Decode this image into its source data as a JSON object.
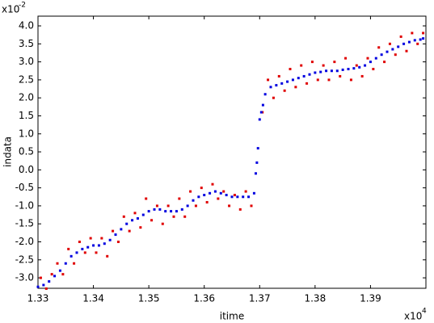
{
  "chart_data": {
    "type": "scatter",
    "x_label": "itime",
    "y_label": "indata",
    "x_multiplier": {
      "base": "x10",
      "exponent": "4"
    },
    "y_multiplier": {
      "base": "x10",
      "exponent": "-2"
    },
    "xlim": [
      1.33,
      1.4
    ],
    "ylim": [
      -3.29,
      4.27
    ],
    "xticks": [
      1.33,
      1.34,
      1.35,
      1.36,
      1.37,
      1.38,
      1.39
    ],
    "yticks": [
      {
        "value": -3,
        "label": "-3.0"
      },
      -2.5,
      {
        "value": -2,
        "label": "-2.0"
      },
      -1.5,
      {
        "value": -1,
        "label": "-1.0"
      },
      -0.5,
      {
        "value": 0,
        "label": "0.0"
      },
      0.5,
      {
        "value": 1,
        "label": "1.0"
      },
      1.5,
      {
        "value": 2,
        "label": "2.0"
      },
      2.5,
      {
        "value": 3,
        "label": "3.0"
      },
      3.5,
      {
        "value": 4,
        "label": "4.0"
      }
    ],
    "series": [
      {
        "color": "#e00000",
        "x": [
          1.3305,
          1.3315,
          1.3325,
          1.3335,
          1.3345,
          1.3355,
          1.3365,
          1.3375,
          1.3385,
          1.3395,
          1.3405,
          1.3415,
          1.3425,
          1.3435,
          1.3445,
          1.3455,
          1.3465,
          1.3475,
          1.3485,
          1.3495,
          1.3505,
          1.3515,
          1.3525,
          1.3535,
          1.3545,
          1.3555,
          1.3565,
          1.3575,
          1.3585,
          1.3595,
          1.3605,
          1.3615,
          1.3625,
          1.3635,
          1.3645,
          1.3655,
          1.3665,
          1.3675,
          1.3685,
          1.3705,
          1.3715,
          1.3725,
          1.3735,
          1.3745,
          1.3755,
          1.3765,
          1.3775,
          1.3785,
          1.3795,
          1.3805,
          1.3815,
          1.3825,
          1.3835,
          1.3845,
          1.3855,
          1.3865,
          1.3875,
          1.3885,
          1.3895,
          1.3905,
          1.3915,
          1.3925,
          1.3935,
          1.3945,
          1.3955,
          1.3965,
          1.3975,
          1.3985,
          1.3995
        ],
        "values": [
          -3.0,
          -3.3,
          -2.9,
          -2.6,
          -2.9,
          -2.2,
          -2.6,
          -2.0,
          -2.3,
          -1.9,
          -2.3,
          -1.9,
          -2.4,
          -1.7,
          -2.0,
          -1.3,
          -1.7,
          -1.2,
          -1.6,
          -0.8,
          -1.4,
          -1.0,
          -1.5,
          -1.0,
          -1.3,
          -0.8,
          -1.3,
          -0.6,
          -1.0,
          -0.5,
          -0.9,
          -0.4,
          -0.8,
          -0.6,
          -1.0,
          -0.7,
          -1.1,
          -0.6,
          -1.0,
          1.6,
          2.5,
          2.0,
          2.6,
          2.2,
          2.8,
          2.3,
          2.9,
          2.4,
          3.0,
          2.5,
          2.9,
          2.5,
          3.0,
          2.6,
          3.1,
          2.5,
          2.9,
          2.6,
          3.1,
          2.8,
          3.4,
          3.0,
          3.5,
          3.2,
          3.7,
          3.3,
          3.8,
          3.5,
          3.8
        ]
      },
      {
        "color": "#0000e0",
        "x": [
          1.33,
          1.331,
          1.332,
          1.333,
          1.334,
          1.335,
          1.336,
          1.337,
          1.338,
          1.339,
          1.34,
          1.341,
          1.342,
          1.343,
          1.344,
          1.345,
          1.346,
          1.347,
          1.348,
          1.349,
          1.35,
          1.351,
          1.352,
          1.353,
          1.354,
          1.355,
          1.356,
          1.357,
          1.358,
          1.359,
          1.36,
          1.361,
          1.362,
          1.363,
          1.364,
          1.365,
          1.366,
          1.367,
          1.368,
          1.369,
          1.3693,
          1.3695,
          1.3697,
          1.37,
          1.3703,
          1.3706,
          1.371,
          1.372,
          1.373,
          1.374,
          1.375,
          1.376,
          1.377,
          1.378,
          1.379,
          1.38,
          1.381,
          1.382,
          1.383,
          1.384,
          1.385,
          1.386,
          1.387,
          1.388,
          1.389,
          1.39,
          1.391,
          1.392,
          1.393,
          1.394,
          1.395,
          1.396,
          1.397,
          1.398,
          1.399,
          1.3995
        ],
        "values": [
          -3.25,
          -3.2,
          -3.1,
          -2.95,
          -2.8,
          -2.6,
          -2.4,
          -2.3,
          -2.2,
          -2.15,
          -2.1,
          -2.1,
          -2.05,
          -1.95,
          -1.8,
          -1.65,
          -1.5,
          -1.4,
          -1.35,
          -1.25,
          -1.15,
          -1.1,
          -1.1,
          -1.15,
          -1.15,
          -1.15,
          -1.1,
          -1.0,
          -0.85,
          -0.75,
          -0.7,
          -0.65,
          -0.6,
          -0.65,
          -0.7,
          -0.75,
          -0.75,
          -0.75,
          -0.75,
          -0.65,
          -0.1,
          0.2,
          0.6,
          1.4,
          1.6,
          1.8,
          2.1,
          2.3,
          2.35,
          2.4,
          2.45,
          2.5,
          2.55,
          2.6,
          2.65,
          2.7,
          2.72,
          2.75,
          2.75,
          2.75,
          2.78,
          2.8,
          2.82,
          2.85,
          2.9,
          3.0,
          3.1,
          3.2,
          3.28,
          3.35,
          3.42,
          3.5,
          3.55,
          3.6,
          3.62,
          3.65
        ]
      }
    ]
  }
}
